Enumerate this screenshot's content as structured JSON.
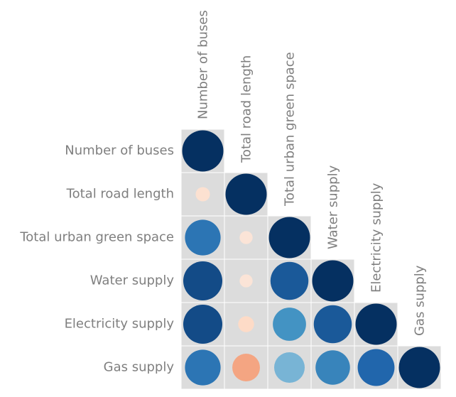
{
  "chart_data": {
    "type": "heatmap",
    "subtype": "lower-triangle correlation matrix (circle size and color encode value)",
    "variables": [
      "Number of buses",
      "Total road length",
      "Total urban green space",
      "Water supply",
      "Electricity supply",
      "Gas supply"
    ],
    "matrix": [
      [
        1.0
      ],
      [
        0.12,
        1.0
      ],
      [
        0.75,
        0.1,
        1.0
      ],
      [
        0.9,
        0.1,
        0.85,
        1.0
      ],
      [
        0.9,
        0.15,
        0.65,
        0.85,
        1.0
      ],
      [
        0.75,
        -0.45,
        0.55,
        0.7,
        0.8,
        1.0
      ]
    ],
    "value_range": [
      -1,
      1
    ],
    "color_scale": {
      "negative": "#b2182b",
      "neutral": "#f7f7f7",
      "positive": "#053061"
    },
    "cell_background": "#dcdcdc",
    "label_color": "#7f7f7f",
    "legend": false,
    "title": ""
  }
}
